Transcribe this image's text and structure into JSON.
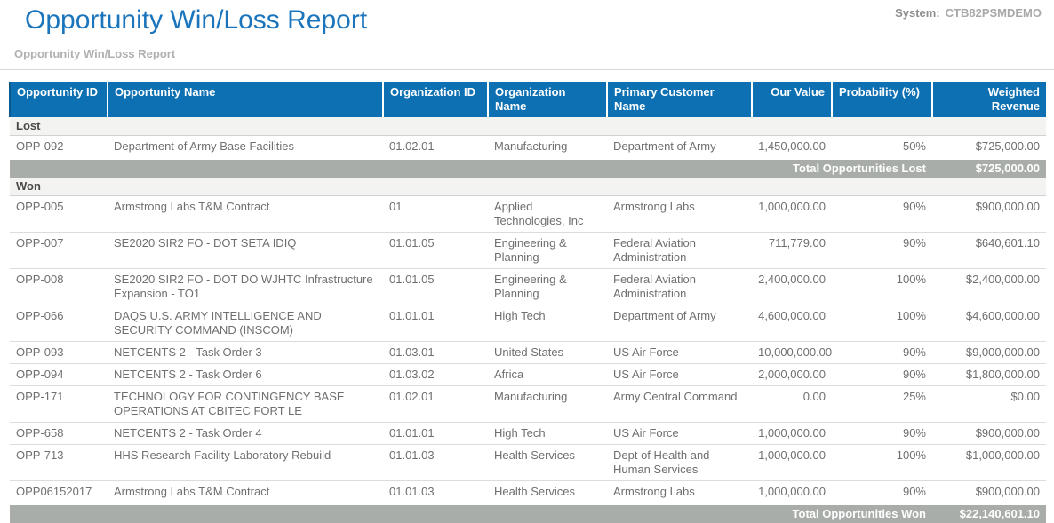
{
  "page": {
    "title": "Opportunity Win/Loss Report",
    "subtitle": "Opportunity Win/Loss Report",
    "system_label": "System:",
    "system_value": "CTB82PSMDEMO"
  },
  "colors": {
    "title_blue": "#1B75BC",
    "header_background": "#0D70B2",
    "header_text": "#FFFFFF",
    "total_row_background": "#A8ADA9",
    "body_text": "#6F6F6F",
    "muted_gray": "#B0B0B0"
  },
  "table": {
    "columns": [
      {
        "key": "opportunity_id",
        "label": "Opportunity ID"
      },
      {
        "key": "opportunity_name",
        "label": "Opportunity Name"
      },
      {
        "key": "organization_id",
        "label": "Organization ID"
      },
      {
        "key": "organization_name",
        "label": "Organization Name"
      },
      {
        "key": "primary_customer_name",
        "label": "Primary Customer Name"
      },
      {
        "key": "our_value",
        "label": "Our Value"
      },
      {
        "key": "probability",
        "label": "Probability (%)"
      },
      {
        "key": "weighted_revenue",
        "label": "Weighted Revenue"
      }
    ],
    "sections": [
      {
        "name": "Lost",
        "rows": [
          [
            "OPP-092",
            "Department of Army Base Facilities",
            "01.02.01",
            "Manufacturing",
            "Department of Army",
            "1,450,000.00",
            "50%",
            "$725,000.00"
          ]
        ],
        "total_label": "Total Opportunities Lost",
        "total_value": "$725,000.00"
      },
      {
        "name": "Won",
        "rows": [
          [
            "OPP-005",
            "Armstrong Labs T&M Contract",
            "01",
            "Applied Technologies, Inc",
            "Armstrong Labs",
            "1,000,000.00",
            "90%",
            "$900,000.00"
          ],
          [
            "OPP-007",
            "SE2020 SIR2 FO - DOT SETA IDIQ",
            "01.01.05",
            "Engineering & Planning",
            "Federal Aviation Administration",
            "711,779.00",
            "90%",
            "$640,601.10"
          ],
          [
            "OPP-008",
            "SE2020 SIR2 FO - DOT DO WJHTC Infrastructure Expansion - TO1",
            "01.01.05",
            "Engineering & Planning",
            "Federal Aviation Administration",
            "2,400,000.00",
            "100%",
            "$2,400,000.00"
          ],
          [
            "OPP-066",
            "DAQS U.S. ARMY INTELLIGENCE AND SECURITY COMMAND (INSCOM)",
            "01.01.01",
            "High Tech",
            "Department of Army",
            "4,600,000.00",
            "100%",
            "$4,600,000.00"
          ],
          [
            "OPP-093",
            "NETCENTS 2 - Task Order 3",
            "01.03.01",
            "United States",
            "US Air Force",
            "10,000,000.00",
            "90%",
            "$9,000,000.00"
          ],
          [
            "OPP-094",
            "NETCENTS 2 - Task Order 6",
            "01.03.02",
            "Africa",
            "US Air Force",
            "2,000,000.00",
            "90%",
            "$1,800,000.00"
          ],
          [
            "OPP-171",
            "TECHNOLOGY FOR CONTINGENCY BASE OPERATIONS AT CBITEC FORT LE",
            "01.02.01",
            "Manufacturing",
            "Army Central Command",
            "0.00",
            "25%",
            "$0.00"
          ],
          [
            "OPP-658",
            "NETCENTS 2 - Task Order 4",
            "01.01.01",
            "High Tech",
            "US Air Force",
            "1,000,000.00",
            "90%",
            "$900,000.00"
          ],
          [
            "OPP-713",
            "HHS Research Facility Laboratory Rebuild",
            "01.01.03",
            "Health Services",
            "Dept of Health and Human Services",
            "1,000,000.00",
            "100%",
            "$1,000,000.00"
          ],
          [
            "OPP06152017",
            "Armstrong Labs T&M Contract",
            "01.01.03",
            "Health Services",
            "Armstrong Labs",
            "1,000,000.00",
            "90%",
            "$900,000.00"
          ]
        ],
        "total_label": "Total Opportunities Won",
        "total_value": "$22,140,601.10"
      }
    ]
  }
}
